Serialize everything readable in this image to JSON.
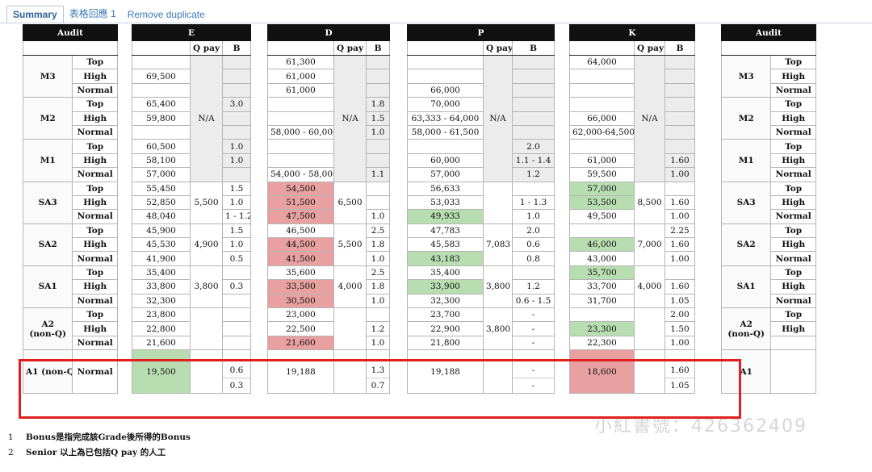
{
  "tabs": [
    {
      "label": "Summary",
      "active": true
    },
    {
      "label": "表格回應 1",
      "active": false
    },
    {
      "label": "Remove duplicate",
      "active": false
    }
  ],
  "audit": {
    "title": "Audit",
    "levels": [
      "M3",
      "M2",
      "M1",
      "SA3",
      "SA2",
      "SA1",
      "A2\n(non-Q)",
      "A1 (non-Q)"
    ],
    "subs": [
      "Top",
      "High",
      "Normal"
    ]
  },
  "groups": {
    "E": {
      "title": "E",
      "qpay": "Q pay",
      "b": "B",
      "na": "N/A",
      "rows": [
        [
          "",
          ""
        ],
        [
          "69,500",
          ""
        ],
        [
          "",
          ""
        ],
        [
          "65,400",
          "3.0"
        ],
        [
          "59,800",
          ""
        ],
        [
          "",
          ""
        ],
        [
          "60,500",
          "1.0"
        ],
        [
          "58,100",
          "1.0"
        ],
        [
          "57,000",
          ""
        ],
        [
          "55,450",
          "1.5"
        ],
        [
          "52,850",
          "1.0"
        ],
        [
          "48,040",
          "1 - 1.2"
        ],
        [
          "45,900",
          "1.5"
        ],
        [
          "45,530",
          "1.0"
        ],
        [
          "41,900",
          "0.5"
        ],
        [
          "35,400",
          ""
        ],
        [
          "33,800",
          "0.3"
        ],
        [
          "32,300",
          ""
        ],
        [
          "23,800",
          ""
        ],
        [
          "22,800",
          ""
        ],
        [
          "21,600",
          ""
        ],
        [
          "19,500",
          "0.6"
        ],
        [
          "",
          "0.3"
        ]
      ],
      "qp": {
        "SA3": "5,500",
        "SA2": "4,900",
        "SA1": "3,800"
      }
    },
    "D": {
      "title": "D",
      "qpay": "Q pay",
      "b": "B",
      "na": "N/A",
      "rows": [
        [
          "61,300",
          ""
        ],
        [
          "61,000",
          ""
        ],
        [
          "61,000",
          ""
        ],
        [
          "",
          "1.8"
        ],
        [
          "",
          "1.5"
        ],
        [
          "58,000 - 60,000",
          "1.0"
        ],
        [
          "",
          ""
        ],
        [
          "",
          ""
        ],
        [
          "54,000 - 58,000",
          "1.1"
        ],
        [
          "54,500",
          ""
        ],
        [
          "51,500",
          ""
        ],
        [
          "47,500",
          "1.0"
        ],
        [
          "46,500",
          "2.5"
        ],
        [
          "44,500",
          "1.8"
        ],
        [
          "41,500",
          "1.0"
        ],
        [
          "35,600",
          "2.5"
        ],
        [
          "33,500",
          "1.8"
        ],
        [
          "30,500",
          "1.0"
        ],
        [
          "23,000",
          ""
        ],
        [
          "22,500",
          "1.2"
        ],
        [
          "21,600",
          "1.0"
        ],
        [
          "19,188",
          "1.3"
        ],
        [
          "",
          "0.7"
        ]
      ],
      "qp": {
        "SA3": "6,500",
        "SA2": "5,500",
        "SA1": "4,000"
      }
    },
    "P": {
      "title": "P",
      "qpay": "Q pay",
      "b": "B",
      "na": "N/A",
      "rows": [
        [
          "",
          ""
        ],
        [
          "",
          ""
        ],
        [
          "66,000",
          ""
        ],
        [
          "70,000",
          ""
        ],
        [
          "63,333 - 64,000",
          ""
        ],
        [
          "58,000 - 61,500",
          ""
        ],
        [
          "",
          "2.0"
        ],
        [
          "60,000",
          "1.1 - 1.4"
        ],
        [
          "57,000",
          "1.2"
        ],
        [
          "56,633",
          ""
        ],
        [
          "53,033",
          "1 - 1.3"
        ],
        [
          "49,933",
          "1.0"
        ],
        [
          "47,783",
          "2.0"
        ],
        [
          "45,583",
          "0.6"
        ],
        [
          "43,183",
          "0.8"
        ],
        [
          "35,400",
          ""
        ],
        [
          "33,900",
          "1.2"
        ],
        [
          "32,300",
          "0.6 - 1.5"
        ],
        [
          "23,700",
          "-"
        ],
        [
          "22,900",
          "-"
        ],
        [
          "21,800",
          "-"
        ],
        [
          "19,188",
          "-"
        ],
        [
          "",
          "-"
        ]
      ],
      "qp": {
        "SA2": "7,083",
        "SA1": "3,800",
        "A2": "3,800"
      }
    },
    "K": {
      "title": "K",
      "qpay": "Q pay",
      "b": "B",
      "na": "N/A",
      "rows": [
        [
          "64,000",
          ""
        ],
        [
          "",
          ""
        ],
        [
          "",
          ""
        ],
        [
          "",
          ""
        ],
        [
          "66,000",
          ""
        ],
        [
          "62,000-64,500",
          ""
        ],
        [
          "",
          ""
        ],
        [
          "61,000",
          "1.60"
        ],
        [
          "59,500",
          "1.00"
        ],
        [
          "57,000",
          ""
        ],
        [
          "53,500",
          "1.60"
        ],
        [
          "49,500",
          "1.00"
        ],
        [
          "",
          "2.25"
        ],
        [
          "46,000",
          "1.60"
        ],
        [
          "43,000",
          "1.00"
        ],
        [
          "35,700",
          ""
        ],
        [
          "33,700",
          "1.60"
        ],
        [
          "31,700",
          "1.05"
        ],
        [
          "",
          "2.00"
        ],
        [
          "23,300",
          "1.50"
        ],
        [
          "22,300",
          "1.00"
        ],
        [
          "18,600",
          "1.60"
        ],
        [
          "",
          "1.05"
        ]
      ],
      "qp": {
        "SA3": "8,500",
        "SA2": "7,000",
        "SA1": "4,000"
      }
    }
  },
  "notes": [
    {
      "num": "1",
      "text": "Bonus是指完成該Grade後所得的Bonus"
    },
    {
      "num": "2",
      "text": "Senior 以上為已包括Q pay 的人工"
    }
  ],
  "watermark": "小紅書號：426362409",
  "colors": {
    "red": "#e8a0a0",
    "green": "#b8ddb0",
    "highlight": "#e02020"
  }
}
